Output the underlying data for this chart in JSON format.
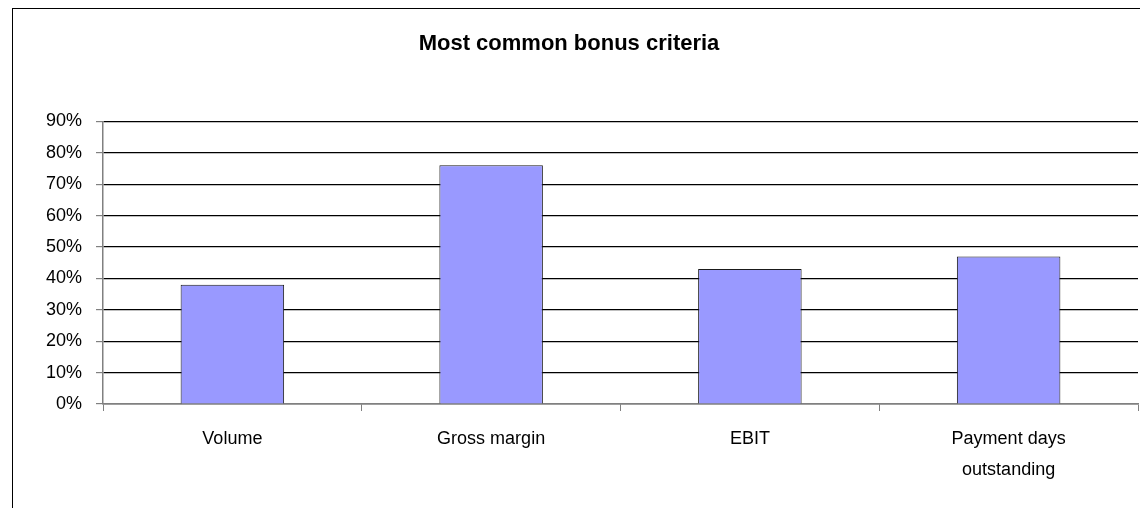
{
  "chart_data": {
    "type": "bar",
    "title": "Most common bonus criteria",
    "categories": [
      "Volume",
      "Gross margin",
      "EBIT",
      "Payment days outstanding"
    ],
    "values": [
      38,
      76,
      43,
      47
    ],
    "color": "#9999ff",
    "ylim": [
      0,
      90
    ],
    "yticks": [
      {
        "value": 0,
        "label": "0%"
      },
      {
        "value": 10,
        "label": "10%"
      },
      {
        "value": 20,
        "label": "20%"
      },
      {
        "value": 30,
        "label": "30%"
      },
      {
        "value": 40,
        "label": "40%"
      },
      {
        "value": 50,
        "label": "50%"
      },
      {
        "value": 60,
        "label": "60%"
      },
      {
        "value": 70,
        "label": "70%"
      },
      {
        "value": 80,
        "label": "80%"
      },
      {
        "value": 90,
        "label": "90%"
      }
    ],
    "grid": "y",
    "legend": false
  }
}
